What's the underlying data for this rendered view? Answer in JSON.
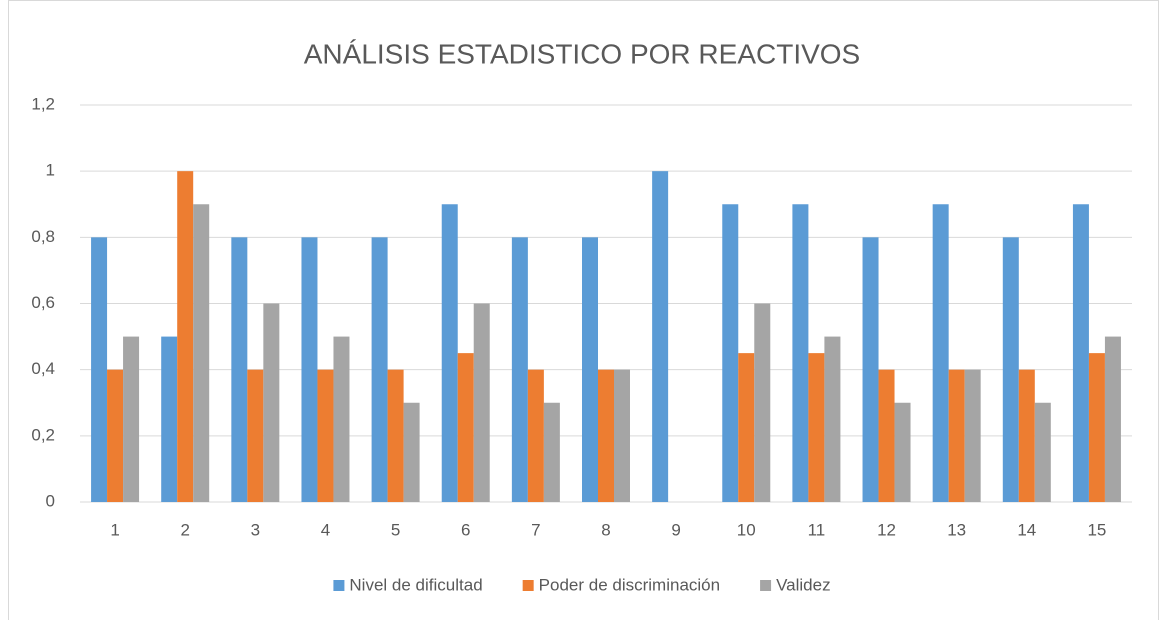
{
  "chart_data": {
    "type": "bar",
    "title": "ANÁLISIS ESTADISTICO POR REACTIVOS",
    "categories": [
      "1",
      "2",
      "3",
      "4",
      "5",
      "6",
      "7",
      "8",
      "9",
      "10",
      "11",
      "12",
      "13",
      "14",
      "15"
    ],
    "series": [
      {
        "name": "Nivel de dificultad",
        "color": "#5b9bd5",
        "values": [
          0.8,
          0.5,
          0.8,
          0.8,
          0.8,
          0.9,
          0.8,
          0.8,
          1,
          0.9,
          0.9,
          0.8,
          0.9,
          0.8,
          0.9
        ]
      },
      {
        "name": "Poder de discriminación",
        "color": "#ed7d31",
        "values": [
          0.4,
          1,
          0.4,
          0.4,
          0.4,
          0.45,
          0.4,
          0.4,
          0,
          0.45,
          0.45,
          0.4,
          0.4,
          0.4,
          0.45
        ]
      },
      {
        "name": "Validez",
        "color": "#a5a5a5",
        "values": [
          0.5,
          0.9,
          0.6,
          0.5,
          0.3,
          0.6,
          0.3,
          0.4,
          0,
          0.6,
          0.5,
          0.3,
          0.4,
          0.3,
          0.5
        ]
      }
    ],
    "ylim": [
      0,
      1.2
    ],
    "yticks": [
      0,
      {
        "value": 0.2,
        "label": "0,2"
      },
      {
        "value": 0.4,
        "label": "0,4"
      },
      {
        "value": 0.6,
        "label": "0,6"
      },
      {
        "value": 0.8,
        "label": "0,8"
      },
      1,
      {
        "value": 1.2,
        "label": "1,2"
      }
    ],
    "grid": true,
    "legend": "bottom"
  }
}
